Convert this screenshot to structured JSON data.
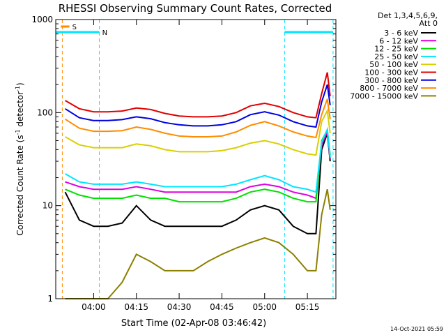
{
  "chart_data": {
    "type": "line",
    "title": "RHESSI Observing Summary Count Rates, Corrected",
    "xlabel": "Start Time (02-Apr-08 03:46:42)",
    "ylabel_main": "Corrected Count Rate (s",
    "ylabel_sup1": "-1",
    "ylabel_mid": " detector",
    "ylabel_sup2": "-1",
    "ylabel_end": ")",
    "y_scale": "log",
    "ylim": [
      1,
      1000
    ],
    "xlim": [
      "03:46:42",
      "05:25:00"
    ],
    "x_ticks": [
      "04:00",
      "04:15",
      "04:30",
      "04:45",
      "05:00",
      "05:15"
    ],
    "y_ticks": [
      "1",
      "10",
      "100",
      "1000"
    ],
    "legend_header": [
      "Det 1,3,4,5,6,9,",
      "Att 0"
    ],
    "legend_position": "right",
    "timestamp": "14-Oct-2021 05:59",
    "flags": [
      {
        "label": "S",
        "color": "#ff8c00",
        "x": [
          "03:48:30",
          "03:51:30"
        ]
      },
      {
        "label": "N",
        "color": "#00e5ff",
        "x": [
          "03:46:42",
          "04:02:00"
        ]
      },
      {
        "label": "",
        "color": "#00e5ff",
        "x": [
          "05:07:00",
          "05:24:00"
        ]
      }
    ],
    "night_lines": [
      "03:46:42",
      "04:02:00",
      "05:07:00",
      "05:24:00"
    ],
    "saa_lines": [
      "03:49:00"
    ],
    "time_axis": [
      "03:50",
      "03:55",
      "04:00",
      "04:05",
      "04:10",
      "04:15",
      "04:20",
      "04:25",
      "04:30",
      "04:35",
      "04:40",
      "04:45",
      "04:50",
      "04:55",
      "05:00",
      "05:05",
      "05:10",
      "05:15",
      "05:18",
      "05:20",
      "05:22",
      "05:23"
    ],
    "series": [
      {
        "name": "3 - 6 keV",
        "color": "#000000",
        "values": [
          14,
          7,
          6,
          6,
          6.5,
          10,
          7,
          6,
          6,
          6,
          6,
          6,
          7,
          9,
          10,
          9,
          6,
          5,
          5,
          40,
          60,
          30
        ]
      },
      {
        "name": "6 - 12 keV",
        "color": "#e000e0",
        "values": [
          18,
          16,
          15,
          15,
          15,
          16,
          15,
          14,
          14,
          14,
          14,
          14,
          14,
          16,
          17,
          16,
          14,
          13,
          12,
          45,
          62,
          32
        ]
      },
      {
        "name": "12 - 25 keV",
        "color": "#00e000",
        "values": [
          15,
          13,
          12,
          12,
          12,
          13,
          12,
          12,
          11,
          11,
          11,
          11,
          12,
          14,
          15,
          14,
          12,
          11,
          11,
          50,
          65,
          35
        ]
      },
      {
        "name": "25 - 50 keV",
        "color": "#00e5ff",
        "values": [
          22,
          18,
          17,
          17,
          17,
          18,
          17,
          16,
          16,
          16,
          16,
          16,
          17,
          19,
          21,
          19,
          16,
          15,
          14,
          48,
          66,
          33
        ]
      },
      {
        "name": "50 - 100 keV",
        "color": "#d8d000",
        "values": [
          55,
          45,
          42,
          42,
          42,
          46,
          44,
          40,
          38,
          38,
          38,
          39,
          42,
          47,
          50,
          46,
          40,
          36,
          35,
          80,
          105,
          60
        ]
      },
      {
        "name": "100 - 300 keV",
        "color": "#e00000",
        "values": [
          135,
          110,
          102,
          102,
          104,
          112,
          108,
          98,
          92,
          90,
          90,
          92,
          100,
          118,
          126,
          116,
          100,
          90,
          88,
          160,
          270,
          150
        ]
      },
      {
        "name": "300 - 800 keV",
        "color": "#0000e0",
        "values": [
          110,
          88,
          82,
          82,
          84,
          90,
          86,
          78,
          74,
          72,
          72,
          74,
          80,
          95,
          102,
          94,
          80,
          72,
          70,
          130,
          200,
          120
        ]
      },
      {
        "name": "800 - 7000 keV",
        "color": "#ff8c00",
        "values": [
          85,
          68,
          63,
          63,
          64,
          70,
          66,
          60,
          56,
          55,
          55,
          56,
          62,
          73,
          80,
          72,
          62,
          56,
          54,
          95,
          140,
          85
        ]
      },
      {
        "name": "7000 - 15000 keV",
        "color": "#8b8000",
        "values": [
          1,
          1,
          1,
          1,
          1.5,
          3,
          2.5,
          2,
          2,
          2,
          2.5,
          3,
          3.5,
          4,
          4.5,
          4,
          3,
          2,
          2,
          8,
          15,
          9
        ]
      }
    ]
  }
}
